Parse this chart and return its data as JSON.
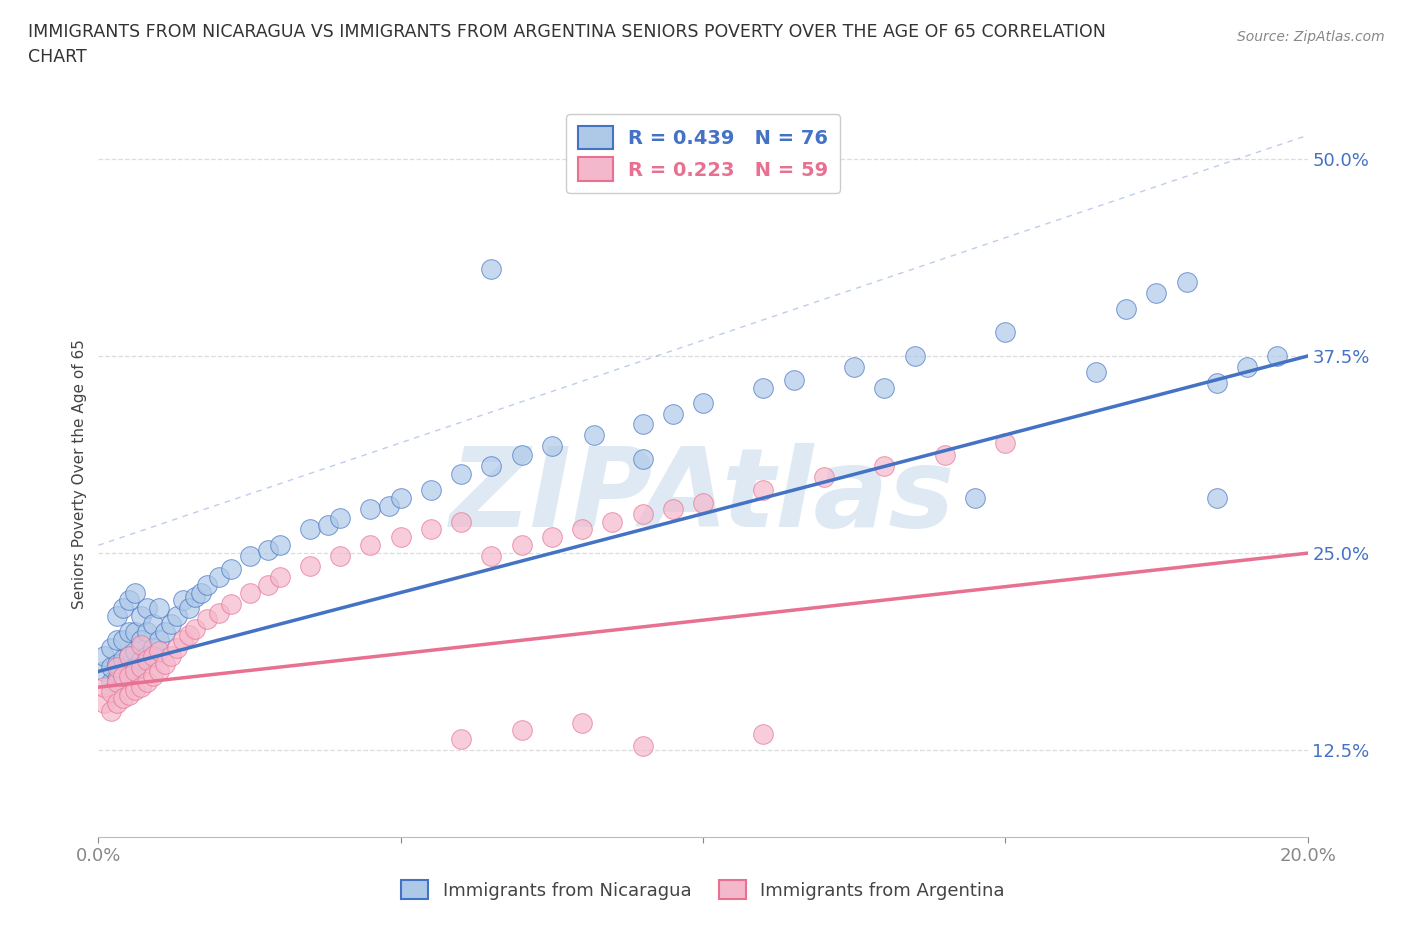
{
  "title_line1": "IMMIGRANTS FROM NICARAGUA VS IMMIGRANTS FROM ARGENTINA SENIORS POVERTY OVER THE AGE OF 65 CORRELATION",
  "title_line2": "CHART",
  "source_text": "Source: ZipAtlas.com",
  "ylabel": "Seniors Poverty Over the Age of 65",
  "xlim": [
    0.0,
    0.2
  ],
  "ylim": [
    0.07,
    0.53
  ],
  "xticks": [
    0.0,
    0.05,
    0.1,
    0.15,
    0.2
  ],
  "xtick_labels": [
    "0.0%",
    "",
    "",
    "",
    "20.0%"
  ],
  "yticks": [
    0.125,
    0.25,
    0.375,
    0.5
  ],
  "ytick_labels": [
    "12.5%",
    "25.0%",
    "37.5%",
    "50.0%"
  ],
  "nicaragua_scatter_color": "#aec9e8",
  "argentina_scatter_color": "#f4b8cc",
  "nicaragua_line_color": "#4472c4",
  "argentina_line_color": "#e87090",
  "nicaragua_R": 0.439,
  "nicaragua_N": 76,
  "argentina_R": 0.223,
  "argentina_N": 59,
  "nicaragua_x": [
    0.001,
    0.001,
    0.002,
    0.002,
    0.002,
    0.003,
    0.003,
    0.003,
    0.003,
    0.004,
    0.004,
    0.004,
    0.004,
    0.005,
    0.005,
    0.005,
    0.005,
    0.006,
    0.006,
    0.006,
    0.006,
    0.007,
    0.007,
    0.007,
    0.008,
    0.008,
    0.008,
    0.009,
    0.009,
    0.01,
    0.01,
    0.011,
    0.012,
    0.013,
    0.014,
    0.015,
    0.016,
    0.017,
    0.018,
    0.02,
    0.022,
    0.025,
    0.028,
    0.03,
    0.035,
    0.038,
    0.04,
    0.045,
    0.048,
    0.05,
    0.055,
    0.06,
    0.065,
    0.07,
    0.075,
    0.082,
    0.09,
    0.095,
    0.1,
    0.11,
    0.115,
    0.125,
    0.135,
    0.15,
    0.17,
    0.175,
    0.18,
    0.185,
    0.19,
    0.195,
    0.065,
    0.09,
    0.13,
    0.145,
    0.165,
    0.185
  ],
  "nicaragua_y": [
    0.175,
    0.185,
    0.168,
    0.178,
    0.19,
    0.17,
    0.18,
    0.195,
    0.21,
    0.172,
    0.183,
    0.195,
    0.215,
    0.175,
    0.185,
    0.2,
    0.22,
    0.178,
    0.188,
    0.2,
    0.225,
    0.182,
    0.195,
    0.21,
    0.185,
    0.2,
    0.215,
    0.19,
    0.205,
    0.195,
    0.215,
    0.2,
    0.205,
    0.21,
    0.22,
    0.215,
    0.222,
    0.225,
    0.23,
    0.235,
    0.24,
    0.248,
    0.252,
    0.255,
    0.265,
    0.268,
    0.272,
    0.278,
    0.28,
    0.285,
    0.29,
    0.3,
    0.305,
    0.312,
    0.318,
    0.325,
    0.332,
    0.338,
    0.345,
    0.355,
    0.36,
    0.368,
    0.375,
    0.39,
    0.405,
    0.415,
    0.422,
    0.358,
    0.368,
    0.375,
    0.43,
    0.31,
    0.355,
    0.285,
    0.365,
    0.285
  ],
  "argentina_x": [
    0.001,
    0.001,
    0.002,
    0.002,
    0.003,
    0.003,
    0.003,
    0.004,
    0.004,
    0.005,
    0.005,
    0.005,
    0.006,
    0.006,
    0.007,
    0.007,
    0.007,
    0.008,
    0.008,
    0.009,
    0.009,
    0.01,
    0.01,
    0.011,
    0.012,
    0.013,
    0.014,
    0.015,
    0.016,
    0.018,
    0.02,
    0.022,
    0.025,
    0.028,
    0.03,
    0.035,
    0.04,
    0.045,
    0.05,
    0.055,
    0.06,
    0.065,
    0.07,
    0.075,
    0.08,
    0.085,
    0.09,
    0.095,
    0.1,
    0.11,
    0.12,
    0.13,
    0.14,
    0.15,
    0.11,
    0.06,
    0.07,
    0.08,
    0.09
  ],
  "argentina_y": [
    0.155,
    0.165,
    0.15,
    0.162,
    0.155,
    0.168,
    0.178,
    0.158,
    0.172,
    0.16,
    0.172,
    0.185,
    0.163,
    0.175,
    0.165,
    0.178,
    0.192,
    0.168,
    0.182,
    0.172,
    0.185,
    0.175,
    0.188,
    0.18,
    0.185,
    0.19,
    0.195,
    0.198,
    0.202,
    0.208,
    0.212,
    0.218,
    0.225,
    0.23,
    0.235,
    0.242,
    0.248,
    0.255,
    0.26,
    0.265,
    0.27,
    0.248,
    0.255,
    0.26,
    0.265,
    0.27,
    0.275,
    0.278,
    0.282,
    0.29,
    0.298,
    0.305,
    0.312,
    0.32,
    0.135,
    0.132,
    0.138,
    0.142,
    0.128
  ],
  "watermark": "ZIPAtlas",
  "watermark_color": "#c5d8ea",
  "background_color": "#ffffff",
  "grid_color": "#dddddd"
}
